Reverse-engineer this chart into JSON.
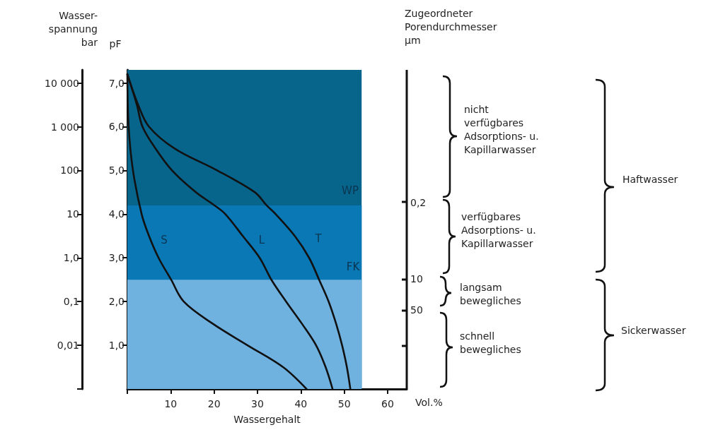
{
  "chart_data": {
    "type": "line",
    "xlabel": "Wassergehalt",
    "ylabel": "pF",
    "y2label": "Wasser-\nspannung\nbar",
    "xlim": [
      0,
      64.4
    ],
    "xticks": [
      {
        "value": 0,
        "label": null
      },
      10,
      20,
      30,
      40,
      50,
      60
    ],
    "ylim": [
      0,
      7.3
    ],
    "yticks": [
      {
        "value": 1,
        "label": "1,0"
      },
      {
        "value": 2,
        "label": "2,0"
      },
      {
        "value": 3,
        "label": "3,0"
      },
      {
        "value": 4,
        "label": "4,0"
      },
      {
        "value": 5,
        "label": "5,0"
      },
      {
        "value": 6,
        "label": "6,0"
      },
      {
        "value": 7,
        "label": "7,0"
      }
    ],
    "y2lim": [
      0.001,
      20000
    ],
    "y2ticks": [
      {
        "value": 0.001,
        "label": null
      },
      {
        "value": 0.01,
        "label": "0,01"
      },
      {
        "value": 0.1,
        "label": "0,1"
      },
      {
        "value": 1,
        "label": "1,0"
      },
      10,
      100,
      {
        "value": 1000,
        "label": "1 000"
      },
      {
        "value": 10000,
        "label": "10 000"
      }
    ],
    "log": "y2",
    "stacked": true,
    "series": [
      {
        "type": "area",
        "color": "#6fb2e0",
        "x": [
          0,
          54
        ],
        "values": [
          2.5,
          2.5
        ]
      },
      {
        "type": "area",
        "color": "#0a78b4",
        "x": [
          0,
          54
        ],
        "values": [
          1.7,
          1.7
        ]
      },
      {
        "type": "area",
        "color": "#07658c",
        "x": [
          0,
          54
        ],
        "values": [
          3.1,
          3.1
        ]
      },
      {
        "color": "#111111",
        "x": [
          0,
          0.3,
          1.3,
          3.3,
          5,
          7.2,
          10.1,
          13,
          19.6,
          27.7,
          35.9,
          41.3
        ],
        "values": [
          7.2,
          6,
          5,
          4,
          3.5,
          3,
          2.5,
          2,
          1.5,
          1,
          0.5,
          0
        ]
      },
      {
        "color": "#111111",
        "x": [
          0,
          2.2,
          3.5,
          6.5,
          10.3,
          15.8,
          20.1,
          22.6,
          26.6,
          30.5,
          33.2,
          36.6,
          40.2,
          43.5,
          45.7,
          47.3
        ],
        "values": [
          7.2,
          6.5,
          6,
          5.5,
          5,
          4.5,
          4.2,
          4,
          3.5,
          3,
          2.5,
          2,
          1.5,
          1,
          0.5,
          0
        ]
      },
      {
        "color": "#111111",
        "x": [
          0,
          2.5,
          5,
          10.9,
          20.7,
          29.4,
          32.1,
          34.2,
          38.6,
          41.9,
          44.2,
          46.4,
          48.1,
          49.5,
          50.6,
          51.4
        ],
        "values": [
          7.2,
          6.5,
          6,
          5.5,
          5,
          4.5,
          4.2,
          4,
          3.5,
          3,
          2.5,
          2,
          1.5,
          1,
          0.5,
          0
        ]
      }
    ],
    "annotations": [
      "S",
      "L",
      "T",
      "WP",
      "FK",
      "nicht\nverfügbares\nAdsorptions- u.\nKapillarwasser",
      "verfügbares\nAdsorptions- u.\nKapillarwasser",
      "langsam\nbewegliches",
      "schnell\nbewegliches",
      "Haftwasser",
      "Sickerwasser",
      "Vol.%",
      "Zugeordneter\nPorendurchmesser\nµm",
      "0,2",
      "10",
      "50"
    ]
  }
}
